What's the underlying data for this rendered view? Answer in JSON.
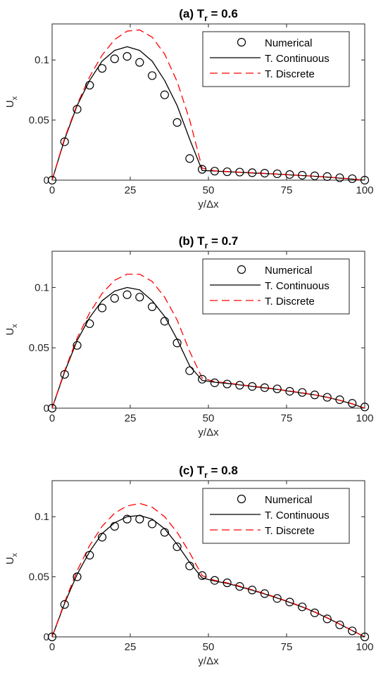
{
  "legend_labels": [
    "Numerical",
    "T. Continuous",
    "T. Discrete"
  ],
  "colors": {
    "numerical": "#000000",
    "continuous": "#000000",
    "discrete": "#ff0000"
  },
  "chart_data": [
    {
      "type": "line",
      "title": "(a) T",
      "title_subscript": "r",
      "title_suffix": " = 0.6",
      "xlabel": "y/Δx",
      "ylabel": "U",
      "ylabel_subscript": "x",
      "xlim": [
        0,
        100
      ],
      "ylim": [
        0,
        0.13
      ],
      "xticks": [
        0,
        25,
        50,
        75,
        100
      ],
      "yticks": [
        0,
        0.05,
        0.1
      ],
      "ytick_labels": [
        "0",
        "0.05",
        "0.1"
      ],
      "legend_position": "top-right",
      "series": [
        {
          "name": "Numerical",
          "style": "markers",
          "x": [
            0,
            4,
            8,
            12,
            16,
            20,
            24,
            28,
            32,
            36,
            40,
            44,
            48,
            52,
            56,
            60,
            64,
            68,
            72,
            76,
            80,
            84,
            88,
            92,
            96,
            100
          ],
          "y": [
            0,
            0.032,
            0.059,
            0.079,
            0.093,
            0.101,
            0.103,
            0.098,
            0.087,
            0.071,
            0.048,
            0.018,
            0.009,
            0.0075,
            0.007,
            0.0067,
            0.0062,
            0.0058,
            0.0053,
            0.0047,
            0.0041,
            0.0036,
            0.003,
            0.002,
            0.0012,
            0
          ]
        },
        {
          "name": "T. Continuous",
          "style": "solid",
          "x": [
            0,
            4,
            8,
            12,
            16,
            20,
            24,
            28,
            32,
            36,
            40,
            44,
            48,
            52,
            56,
            60,
            64,
            68,
            72,
            76,
            80,
            84,
            88,
            92,
            96,
            100
          ],
          "y": [
            0,
            0.034,
            0.062,
            0.083,
            0.099,
            0.108,
            0.111,
            0.108,
            0.099,
            0.083,
            0.062,
            0.034,
            0.008,
            0.0076,
            0.007,
            0.0065,
            0.006,
            0.0055,
            0.005,
            0.0044,
            0.0038,
            0.0032,
            0.0025,
            0.0017,
            0.0009,
            0
          ]
        },
        {
          "name": "T. Discrete",
          "style": "dashed",
          "x": [
            0,
            4,
            8,
            12,
            16,
            20,
            24,
            28,
            32,
            36,
            40,
            44,
            48,
            52,
            56,
            60,
            64,
            68,
            72,
            76,
            80,
            84,
            88,
            92,
            96,
            100
          ],
          "y": [
            0,
            0.035,
            0.063,
            0.086,
            0.104,
            0.117,
            0.124,
            0.125,
            0.119,
            0.105,
            0.082,
            0.05,
            0.01,
            0.0078,
            0.0072,
            0.0067,
            0.0062,
            0.0057,
            0.0051,
            0.0045,
            0.0039,
            0.0033,
            0.0026,
            0.0018,
            0.001,
            0
          ]
        }
      ]
    },
    {
      "type": "line",
      "title": "(b) T",
      "title_subscript": "r",
      "title_suffix": " = 0.7",
      "xlabel": "y/Δx",
      "ylabel": "U",
      "ylabel_subscript": "x",
      "xlim": [
        0,
        100
      ],
      "ylim": [
        0,
        0.13
      ],
      "xticks": [
        0,
        25,
        50,
        75,
        100
      ],
      "yticks": [
        0,
        0.05,
        0.1
      ],
      "ytick_labels": [
        "0",
        "0.05",
        "0.1"
      ],
      "legend_position": "top-right",
      "series": [
        {
          "name": "Numerical",
          "style": "markers",
          "x": [
            0,
            4,
            8,
            12,
            16,
            20,
            24,
            28,
            32,
            36,
            40,
            44,
            48,
            52,
            56,
            60,
            64,
            68,
            72,
            76,
            80,
            84,
            88,
            92,
            96,
            100
          ],
          "y": [
            0,
            0.028,
            0.052,
            0.07,
            0.083,
            0.091,
            0.094,
            0.092,
            0.084,
            0.072,
            0.054,
            0.031,
            0.024,
            0.021,
            0.02,
            0.019,
            0.018,
            0.017,
            0.016,
            0.014,
            0.013,
            0.011,
            0.009,
            0.007,
            0.004,
            0.001
          ]
        },
        {
          "name": "T. Continuous",
          "style": "solid",
          "x": [
            0,
            4,
            8,
            12,
            16,
            20,
            24,
            28,
            32,
            36,
            40,
            44,
            48,
            52,
            56,
            60,
            64,
            68,
            72,
            76,
            80,
            84,
            88,
            92,
            96,
            100
          ],
          "y": [
            0,
            0.03,
            0.056,
            0.075,
            0.089,
            0.097,
            0.1,
            0.098,
            0.089,
            0.076,
            0.057,
            0.035,
            0.023,
            0.0215,
            0.0205,
            0.0193,
            0.018,
            0.0168,
            0.0155,
            0.014,
            0.0125,
            0.011,
            0.009,
            0.0065,
            0.0035,
            0
          ]
        },
        {
          "name": "T. Discrete",
          "style": "dashed",
          "x": [
            0,
            4,
            8,
            12,
            16,
            20,
            24,
            28,
            32,
            36,
            40,
            44,
            48,
            52,
            56,
            60,
            64,
            68,
            72,
            76,
            80,
            84,
            88,
            92,
            96,
            100
          ],
          "y": [
            0,
            0.031,
            0.058,
            0.079,
            0.095,
            0.106,
            0.111,
            0.111,
            0.105,
            0.092,
            0.073,
            0.047,
            0.025,
            0.022,
            0.021,
            0.0195,
            0.0183,
            0.017,
            0.0157,
            0.0142,
            0.0127,
            0.0111,
            0.0091,
            0.0066,
            0.0036,
            0
          ]
        }
      ]
    },
    {
      "type": "line",
      "title": "(c) T",
      "title_subscript": "r",
      "title_suffix": " = 0.8",
      "xlabel": "y/Δx",
      "ylabel": "U",
      "ylabel_subscript": "x",
      "xlim": [
        0,
        100
      ],
      "ylim": [
        0,
        0.13
      ],
      "xticks": [
        0,
        25,
        50,
        75,
        100
      ],
      "yticks": [
        0,
        0.05,
        0.1
      ],
      "ytick_labels": [
        "0",
        "0.05",
        "0.1"
      ],
      "legend_position": "top-right",
      "series": [
        {
          "name": "Numerical",
          "style": "markers",
          "x": [
            0,
            4,
            8,
            12,
            16,
            20,
            24,
            28,
            32,
            36,
            40,
            44,
            48,
            52,
            56,
            60,
            64,
            68,
            72,
            76,
            80,
            84,
            88,
            92,
            96,
            100
          ],
          "y": [
            0,
            0.027,
            0.05,
            0.068,
            0.083,
            0.092,
            0.098,
            0.098,
            0.094,
            0.087,
            0.075,
            0.059,
            0.051,
            0.047,
            0.045,
            0.042,
            0.039,
            0.036,
            0.032,
            0.029,
            0.025,
            0.02,
            0.015,
            0.01,
            0.005,
            0
          ]
        },
        {
          "name": "T. Continuous",
          "style": "solid",
          "x": [
            0,
            4,
            8,
            12,
            16,
            20,
            24,
            28,
            32,
            36,
            40,
            44,
            48,
            52,
            56,
            60,
            64,
            68,
            72,
            76,
            80,
            84,
            88,
            92,
            96,
            100
          ],
          "y": [
            0,
            0.028,
            0.052,
            0.071,
            0.086,
            0.095,
            0.1,
            0.101,
            0.098,
            0.09,
            0.077,
            0.062,
            0.049,
            0.0465,
            0.0445,
            0.0418,
            0.0388,
            0.0357,
            0.0323,
            0.0287,
            0.0249,
            0.0206,
            0.0158,
            0.0106,
            0.0052,
            0
          ]
        },
        {
          "name": "T. Discrete",
          "style": "dashed",
          "x": [
            0,
            4,
            8,
            12,
            16,
            20,
            24,
            28,
            32,
            36,
            40,
            44,
            48,
            52,
            56,
            60,
            64,
            68,
            72,
            76,
            80,
            84,
            88,
            92,
            96,
            100
          ],
          "y": [
            0,
            0.029,
            0.055,
            0.076,
            0.092,
            0.103,
            0.109,
            0.111,
            0.108,
            0.1,
            0.087,
            0.07,
            0.051,
            0.047,
            0.045,
            0.0422,
            0.0392,
            0.036,
            0.0326,
            0.029,
            0.0251,
            0.0208,
            0.016,
            0.0107,
            0.0053,
            0
          ]
        }
      ]
    }
  ]
}
